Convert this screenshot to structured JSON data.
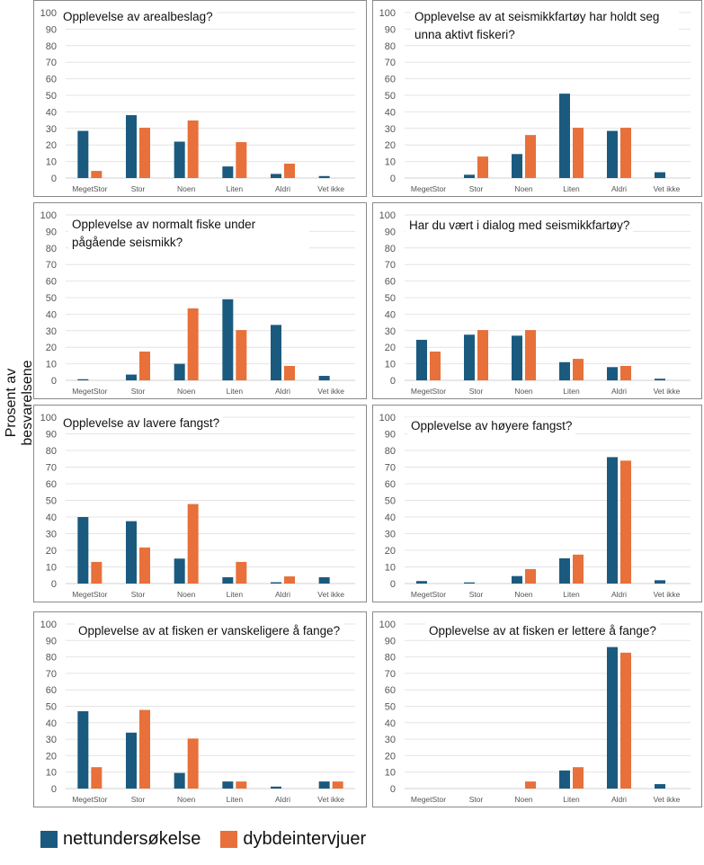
{
  "y_axis_label": "Prosent av besvarelsene",
  "colors": {
    "nettundersokelse": "#1b5a7f",
    "dybdeintervjuer": "#e8703a"
  },
  "chart_data": [
    {
      "type": "bar",
      "title": "Opplevelse av arealbeslag?",
      "categories": [
        "MegetStor",
        "Stor",
        "Noen",
        "Liten",
        "Aldri",
        "Vet ikke"
      ],
      "ylim": [
        0,
        100
      ],
      "yticks": [
        "0",
        "10",
        "20",
        "30",
        "40",
        "50",
        "60",
        "70",
        "80",
        "90",
        "100"
      ],
      "grid": true,
      "series": [
        {
          "name": "nettundersøkelse",
          "values": [
            28.5,
            38,
            22,
            7,
            2.5,
            1.2
          ]
        },
        {
          "name": "dybdeintervjuer",
          "values": [
            4.3,
            30.4,
            34.8,
            21.7,
            8.7,
            0
          ]
        }
      ]
    },
    {
      "type": "bar",
      "title": "Opplevelse av at seismikkfartøy har holdt seg unna aktivt fiskeri?",
      "categories": [
        "MegetStor",
        "Stor",
        "Noen",
        "Liten",
        "Aldri",
        "Vet ikke"
      ],
      "ylim": [
        0,
        100
      ],
      "yticks": [
        "0",
        "10",
        "20",
        "30",
        "40",
        "50",
        "60",
        "70",
        "80",
        "90",
        "100"
      ],
      "grid": true,
      "series": [
        {
          "name": "nettundersøkelse",
          "values": [
            0,
            2,
            14.5,
            51,
            28.5,
            3.5
          ]
        },
        {
          "name": "dybdeintervjuer",
          "values": [
            0,
            13,
            26,
            30.4,
            30.4,
            0
          ]
        }
      ]
    },
    {
      "type": "bar",
      "title": "Opplevelse av normalt fiske under pågående seismikk?",
      "categories": [
        "MegetStor",
        "Stor",
        "Noen",
        "Liten",
        "Aldri",
        "Vet ikke"
      ],
      "ylim": [
        0,
        100
      ],
      "yticks": [
        "0",
        "10",
        "20",
        "30",
        "40",
        "50",
        "60",
        "70",
        "80",
        "90",
        "100"
      ],
      "grid": true,
      "series": [
        {
          "name": "nettundersøkelse",
          "values": [
            0.7,
            3.5,
            10,
            49,
            33.5,
            2.7
          ]
        },
        {
          "name": "dybdeintervjuer",
          "values": [
            0,
            17.4,
            43.5,
            30.4,
            8.7,
            0
          ]
        }
      ]
    },
    {
      "type": "bar",
      "title": "Har du vært i dialog med seismikkfartøy?",
      "categories": [
        "MegetStor",
        "Stor",
        "Noen",
        "Liten",
        "Aldri",
        "Vet ikke"
      ],
      "ylim": [
        0,
        100
      ],
      "yticks": [
        "0",
        "10",
        "20",
        "30",
        "40",
        "50",
        "60",
        "70",
        "80",
        "90",
        "100"
      ],
      "grid": true,
      "series": [
        {
          "name": "nettundersøkelse",
          "values": [
            24.5,
            27.6,
            27,
            11,
            8,
            1
          ]
        },
        {
          "name": "dybdeintervjuer",
          "values": [
            17.4,
            30.4,
            30.4,
            13,
            8.7,
            0
          ]
        }
      ]
    },
    {
      "type": "bar",
      "title": "Opplevelse av lavere fangst?",
      "categories": [
        "MegetStor",
        "Stor",
        "Noen",
        "Liten",
        "Aldri",
        "Vet ikke"
      ],
      "ylim": [
        0,
        100
      ],
      "yticks": [
        "0",
        "10",
        "20",
        "30",
        "40",
        "50",
        "60",
        "70",
        "80",
        "90",
        "100"
      ],
      "grid": true,
      "series": [
        {
          "name": "nettundersøkelse",
          "values": [
            40,
            37.5,
            15,
            3.8,
            0.8,
            3.8
          ]
        },
        {
          "name": "dybdeintervjuer",
          "values": [
            13,
            21.7,
            47.8,
            13,
            4.3,
            0
          ]
        }
      ]
    },
    {
      "type": "bar",
      "title": "Opplevelse av høyere fangst?",
      "categories": [
        "MegetStor",
        "Stor",
        "Noen",
        "Liten",
        "Aldri",
        "Vet ikke"
      ],
      "ylim": [
        0,
        100
      ],
      "yticks": [
        "0",
        "10",
        "20",
        "30",
        "40",
        "50",
        "60",
        "70",
        "80",
        "90",
        "100"
      ],
      "grid": true,
      "series": [
        {
          "name": "nettundersøkelse",
          "values": [
            1.5,
            0.7,
            4.5,
            15.2,
            76,
            2
          ]
        },
        {
          "name": "dybdeintervjuer",
          "values": [
            0,
            0,
            8.7,
            17.4,
            73.9,
            0
          ]
        }
      ]
    },
    {
      "type": "bar",
      "title": "Opplevelse av at fisken er vanskeligere å fange?",
      "categories": [
        "MegetStor",
        "Stor",
        "Noen",
        "Liten",
        "Aldri",
        "Vet ikke"
      ],
      "ylim": [
        0,
        100
      ],
      "yticks": [
        "0",
        "10",
        "20",
        "30",
        "40",
        "50",
        "60",
        "70",
        "80",
        "90",
        "100"
      ],
      "grid": true,
      "series": [
        {
          "name": "nettundersøkelse",
          "values": [
            47,
            34,
            9.5,
            4.3,
            1.2,
            4.3
          ]
        },
        {
          "name": "dybdeintervjuer",
          "values": [
            13,
            47.8,
            30.4,
            4.3,
            0,
            4.3
          ]
        }
      ]
    },
    {
      "type": "bar",
      "title": "Opplevelse av at fisken er lettere å fange?",
      "categories": [
        "MegetStor",
        "Stor",
        "Noen",
        "Liten",
        "Aldri",
        "Vet ikke"
      ],
      "ylim": [
        0,
        100
      ],
      "yticks": [
        "0",
        "10",
        "20",
        "30",
        "40",
        "50",
        "60",
        "70",
        "80",
        "90",
        "100"
      ],
      "grid": true,
      "series": [
        {
          "name": "nettundersøkelse",
          "values": [
            0,
            0,
            0,
            11,
            86,
            2.7
          ]
        },
        {
          "name": "dybdeintervjuer",
          "values": [
            0,
            0,
            4.3,
            13,
            82.6,
            0
          ]
        }
      ]
    }
  ],
  "legend": [
    {
      "label": "nettundersøkelse"
    },
    {
      "label": "dybdeintervjuer"
    }
  ]
}
